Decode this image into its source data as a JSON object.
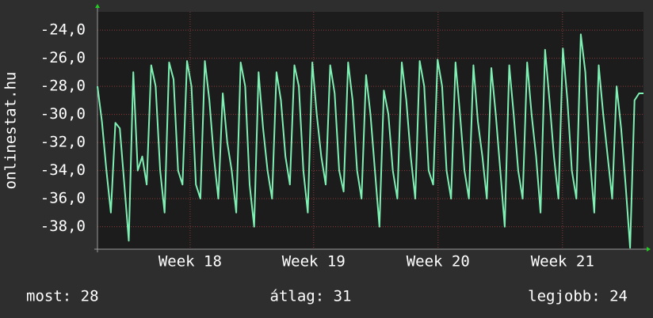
{
  "chart_data": {
    "type": "line",
    "ylabel": "onlinestat.hu",
    "color": "#7ff0b4",
    "values": [
      -28,
      -30.5,
      -34,
      -37,
      -30.6,
      -31,
      -35,
      -39,
      -27,
      -34,
      -33,
      -35,
      -26.5,
      -28,
      -34,
      -37,
      -26.3,
      -27.5,
      -34,
      -35,
      -26.2,
      -28,
      -35,
      -36,
      -26.2,
      -29,
      -33,
      -36,
      -28.5,
      -32,
      -34,
      -37,
      -26.3,
      -28,
      -35,
      -38,
      -27,
      -31,
      -34,
      -36,
      -27,
      -29,
      -33,
      -35,
      -26.5,
      -28,
      -34,
      -37,
      -26.3,
      -30,
      -33,
      -35,
      -26.5,
      -28.5,
      -34,
      -35.5,
      -26.3,
      -29,
      -34,
      -36,
      -27.2,
      -30,
      -34,
      -38,
      -28.3,
      -30,
      -34,
      -36,
      -26.3,
      -29,
      -33,
      -36,
      -26.2,
      -28,
      -34,
      -35,
      -26.1,
      -28,
      -34,
      -36,
      -26.3,
      -30,
      -34,
      -36,
      -26.5,
      -30.5,
      -33,
      -36,
      -26.7,
      -30,
      -34,
      -38,
      -26.5,
      -30,
      -34,
      -36,
      -26.3,
      -30,
      -33,
      -37,
      -25.4,
      -29,
      -33,
      -36,
      -25.3,
      -29,
      -34,
      -36,
      -24.3,
      -27,
      -33,
      -37,
      -26.5,
      -30,
      -33,
      -36,
      -28,
      -31,
      -35,
      -39.5,
      -29,
      -28.5,
      -28.5
    ],
    "xlim": [
      0,
      122
    ],
    "xticks": [
      {
        "value": 20.7,
        "label": "Week 18"
      },
      {
        "value": 48.3,
        "label": "Week 19"
      },
      {
        "value": 76.1,
        "label": "Week 20"
      },
      {
        "value": 103.9,
        "label": "Week 21"
      }
    ],
    "ylim": [
      -39.6,
      -22.7
    ],
    "yticks": [
      {
        "value": -38,
        "label": "-38,0"
      },
      {
        "value": -36,
        "label": "-36,0"
      },
      {
        "value": -34,
        "label": "-34,0"
      },
      {
        "value": -32,
        "label": "-32,0"
      },
      {
        "value": -30,
        "label": "-30,0"
      },
      {
        "value": -28,
        "label": "-28,0"
      },
      {
        "value": -26,
        "label": "-26,0"
      },
      {
        "value": -24,
        "label": "-24,0"
      }
    ],
    "grid": true,
    "footer": [
      "most: 28",
      "átlag: 31",
      "legjobb: 24"
    ]
  }
}
